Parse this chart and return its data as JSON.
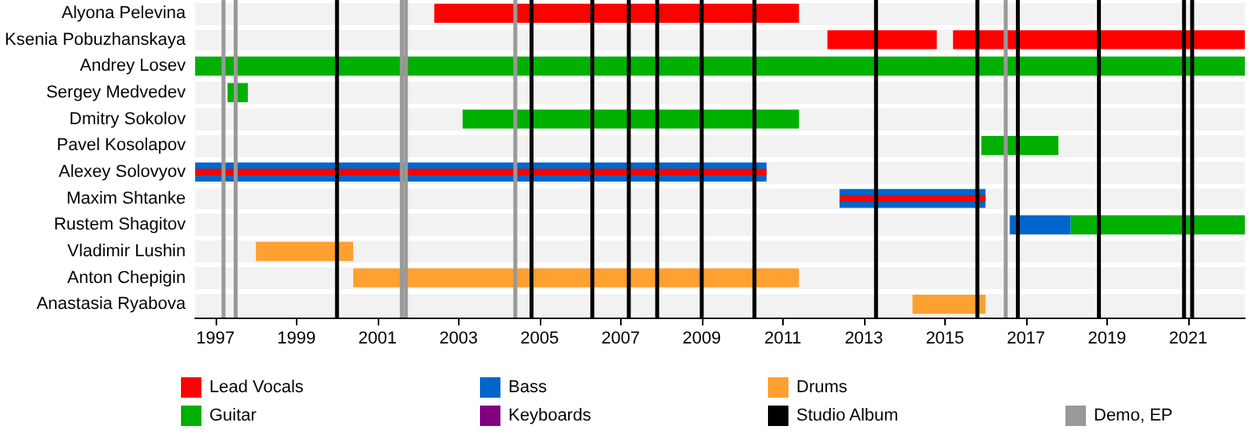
{
  "chart_data": {
    "type": "bar",
    "orientation": "horizontal",
    "categories": [
      "Alyona Pelevina",
      "Ksenia Pobuzhanskaya",
      "Andrey Losev",
      "Sergey Medvedev",
      "Dmitry Sokolov",
      "Pavel Kosolapov",
      "Alexey Solovyov",
      "Maxim Shtanke",
      "Rustem Shagitov",
      "Vladimir Lushin",
      "Anton Chepigin",
      "Anastasia Ryabova"
    ],
    "series": [
      {
        "name": "Lead Vocals",
        "color": "#ff0000",
        "values": [
          9.0,
          2.7,
          null,
          null,
          null,
          null,
          14.1,
          3.6,
          null,
          null,
          null,
          null
        ],
        "base": [
          2002.4,
          2012.1,
          null,
          null,
          null,
          null,
          1996.5,
          2012.4,
          null,
          null,
          null,
          null
        ]
      },
      {
        "name": "Guitar",
        "color": "#00b000",
        "values": [
          null,
          null,
          25.9,
          0.5,
          8.3,
          1.9,
          null,
          null,
          4.3,
          null,
          null,
          null
        ],
        "base": [
          null,
          null,
          1996.5,
          1997.3,
          2003.1,
          2015.9,
          null,
          null,
          2018.1,
          null,
          null,
          null
        ]
      },
      {
        "name": "Bass",
        "color": "#0066cc",
        "values": [
          null,
          null,
          null,
          null,
          null,
          null,
          14.1,
          3.6,
          1.5,
          null,
          null,
          null
        ],
        "base": [
          null,
          null,
          null,
          null,
          null,
          null,
          1996.5,
          2012.4,
          2016.6,
          null,
          null,
          null
        ]
      },
      {
        "name": "Keyboards",
        "color": "#800080",
        "values": [
          null,
          null,
          null,
          null,
          null,
          null,
          null,
          null,
          null,
          null,
          null,
          null
        ],
        "base": [
          null,
          null,
          null,
          null,
          null,
          null,
          null,
          null,
          null,
          null,
          null,
          null
        ]
      },
      {
        "name": "Drums",
        "color": "#ffa030",
        "values": [
          null,
          null,
          null,
          null,
          null,
          null,
          null,
          null,
          null,
          2.4,
          11.0,
          1.8
        ],
        "base": [
          null,
          null,
          null,
          null,
          null,
          null,
          null,
          null,
          null,
          1998.0,
          2000.4,
          2014.2
        ]
      },
      {
        "color": "#ff0000",
        "values": [
          null,
          7.2,
          null,
          null,
          null,
          null,
          null,
          null,
          null,
          null,
          null,
          null
        ],
        "base": [
          null,
          2015.2,
          null,
          null,
          null,
          null,
          null,
          null,
          null,
          null,
          null,
          null
        ]
      }
    ],
    "xlim": [
      1996.5,
      2022.4
    ],
    "xticks": [
      1997,
      1999,
      2001,
      2003,
      2005,
      2007,
      2009,
      2011,
      2013,
      2015,
      2017,
      2019,
      2021
    ],
    "ref_lines": [
      {
        "axis": "x",
        "value": 2000.0,
        "label": "Studio Album",
        "color": "#000000"
      },
      {
        "axis": "x",
        "value": 2004.8,
        "color": "#000000"
      },
      {
        "axis": "x",
        "value": 2006.3,
        "color": "#000000"
      },
      {
        "axis": "x",
        "value": 2007.2,
        "color": "#000000"
      },
      {
        "axis": "x",
        "value": 2007.9,
        "color": "#000000"
      },
      {
        "axis": "x",
        "value": 2009.0,
        "color": "#000000"
      },
      {
        "axis": "x",
        "value": 2010.3,
        "color": "#000000"
      },
      {
        "axis": "x",
        "value": 2013.3,
        "color": "#000000"
      },
      {
        "axis": "x",
        "value": 2015.8,
        "color": "#000000"
      },
      {
        "axis": "x",
        "value": 2016.8,
        "color": "#000000"
      },
      {
        "axis": "x",
        "value": 2018.8,
        "color": "#000000"
      },
      {
        "axis": "x",
        "value": 2020.9,
        "color": "#000000"
      },
      {
        "axis": "x",
        "value": 2021.1,
        "color": "#000000"
      },
      {
        "axis": "x",
        "value": 1997.2,
        "label": "Demo, EP",
        "color": "#999999"
      },
      {
        "axis": "x",
        "value": 1997.5,
        "color": "#999999"
      },
      {
        "axis": "x",
        "value": 2001.6,
        "color": "#999999"
      },
      {
        "axis": "x",
        "value": 2001.7,
        "color": "#999999"
      },
      {
        "axis": "x",
        "value": 2004.4,
        "color": "#999999"
      },
      {
        "axis": "x",
        "value": 2016.5,
        "color": "#999999"
      }
    ],
    "legend": "bottom"
  }
}
